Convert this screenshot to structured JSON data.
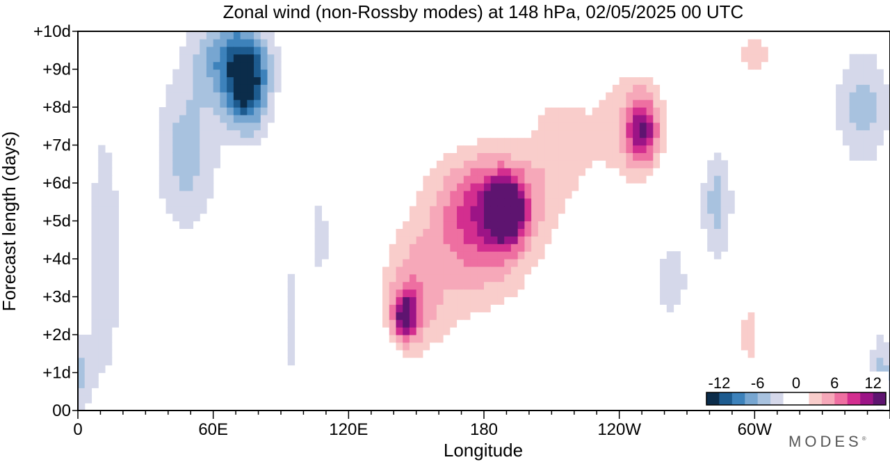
{
  "chart_data": {
    "type": "heatmap",
    "title": "Zonal wind (non-Rossby modes) at 148 hPa,  02/05/2025  00 UTC",
    "xlabel": "Longitude",
    "ylabel": "Forecast length (days)",
    "x_ticks": [
      "0",
      "60E",
      "120E",
      "180",
      "120W",
      "60W"
    ],
    "x_tick_values": [
      0,
      60,
      120,
      180,
      240,
      300
    ],
    "x_range": [
      0,
      360
    ],
    "y_ticks": [
      "00",
      "+1d",
      "+2d",
      "+3d",
      "+4d",
      "+5d",
      "+6d",
      "+7d",
      "+8d",
      "+9d",
      "+10d"
    ],
    "y_range": [
      0,
      10
    ],
    "colorbar": {
      "labels": [
        "-12",
        "-6",
        "0",
        "6",
        "12"
      ],
      "label_values": [
        -12,
        -6,
        0,
        6,
        12
      ],
      "levels": [
        -14,
        -12,
        -10,
        -8,
        -6,
        -4,
        -2,
        2,
        4,
        6,
        8,
        10,
        12,
        14
      ],
      "colors": [
        "#0b2c4a",
        "#1d5b8f",
        "#3d82bb",
        "#77a6d1",
        "#a8c2df",
        "#d5d8ea",
        "#ffffff",
        "#ffffff",
        "#f9cdcb",
        "#f6a8b9",
        "#ee6fa1",
        "#d32e8f",
        "#9c1486",
        "#5e1470"
      ]
    },
    "features": [
      {
        "lon": 75,
        "day": 8.5,
        "value": -11,
        "lon_width": 18,
        "day_width": 2.3
      },
      {
        "lon": 68,
        "day": 9.3,
        "value": -8,
        "lon_width": 32,
        "day_width": 2.4
      },
      {
        "lon": 48,
        "day": 6.8,
        "value": -5,
        "lon_width": 28,
        "day_width": 4.0
      },
      {
        "lon": 12,
        "day": 4.0,
        "value": -4,
        "lon_width": 14,
        "day_width": 7.0
      },
      {
        "lon": 95,
        "day": 2.5,
        "value": -3,
        "lon_width": 8,
        "day_width": 4.0
      },
      {
        "lon": 108,
        "day": 4.5,
        "value": -3,
        "lon_width": 8,
        "day_width": 5.0
      },
      {
        "lon": 2,
        "day": 1.0,
        "value": -4,
        "lon_width": 10,
        "day_width": 2.0
      },
      {
        "lon": 348,
        "day": 8.0,
        "value": -5,
        "lon_width": 24,
        "day_width": 3.0
      },
      {
        "lon": 283,
        "day": 5.5,
        "value": -5,
        "lon_width": 14,
        "day_width": 3.0
      },
      {
        "lon": 263,
        "day": 3.5,
        "value": -4,
        "lon_width": 14,
        "day_width": 2.0
      },
      {
        "lon": 355,
        "day": 1.0,
        "value": -4,
        "lon_width": 8,
        "day_width": 2.0
      },
      {
        "lon": 190,
        "day": 5.3,
        "value": 13,
        "lon_width": 16,
        "day_width": 1.6
      },
      {
        "lon": 182,
        "day": 5.3,
        "value": 8,
        "lon_width": 42,
        "day_width": 3.2
      },
      {
        "lon": 170,
        "day": 4.2,
        "value": 5,
        "lon_width": 80,
        "day_width": 6.0
      },
      {
        "lon": 145,
        "day": 2.5,
        "value": 10,
        "lon_width": 10,
        "day_width": 1.2
      },
      {
        "lon": 148,
        "day": 2.8,
        "value": 5,
        "lon_width": 26,
        "day_width": 3.0
      },
      {
        "lon": 250,
        "day": 7.4,
        "value": 10,
        "lon_width": 14,
        "day_width": 1.8
      },
      {
        "lon": 245,
        "day": 7.5,
        "value": 5,
        "lon_width": 46,
        "day_width": 4.5
      },
      {
        "lon": 212,
        "day": 7.0,
        "value": 4,
        "lon_width": 30,
        "day_width": 4.0
      },
      {
        "lon": 300,
        "day": 9.4,
        "value": 5,
        "lon_width": 28,
        "day_width": 1.6
      },
      {
        "lon": 298,
        "day": 2.0,
        "value": 5,
        "lon_width": 14,
        "day_width": 2.2
      },
      {
        "lon": 262,
        "day": 0.7,
        "value": 2.5,
        "lon_width": 28,
        "day_width": 1.4
      },
      {
        "lon": 38,
        "day": 0.8,
        "value": 2.5,
        "lon_width": 10,
        "day_width": 1.0
      },
      {
        "lon": 113,
        "day": 9.6,
        "value": 2.5,
        "lon_width": 8,
        "day_width": 1.0
      }
    ]
  },
  "brand": {
    "name": "MODES",
    "mark": "®"
  }
}
